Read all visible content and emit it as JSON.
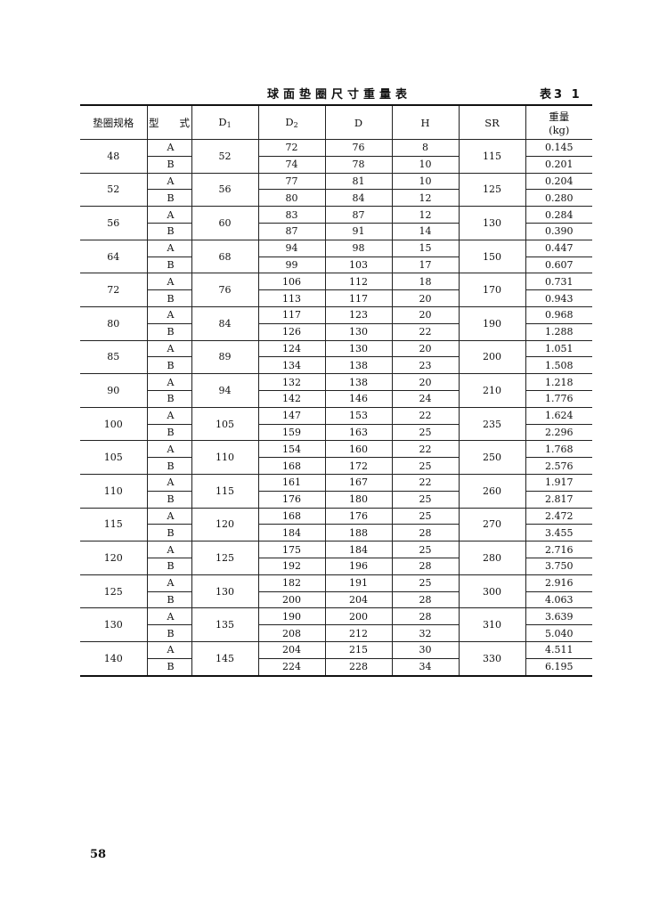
{
  "title": "球面垫圈尺寸重量表",
  "table_number": "表3 1",
  "page_number": "58",
  "headers": {
    "spec": "垫圈规格",
    "type": "型　　式",
    "d1": "D",
    "d1_sub": "1",
    "d2": "D",
    "d2_sub": "2",
    "d": "D",
    "h": "H",
    "sr": "SR",
    "weight": "重量",
    "weight_unit": "(kg)"
  },
  "groups": [
    {
      "spec": "48",
      "d1": "52",
      "sr": "115",
      "rows": [
        {
          "type": "A",
          "d2": "72",
          "d": "76",
          "h": "8",
          "w": "0.145"
        },
        {
          "type": "B",
          "d2": "74",
          "d": "78",
          "h": "10",
          "w": "0.201"
        }
      ]
    },
    {
      "spec": "52",
      "d1": "56",
      "sr": "125",
      "rows": [
        {
          "type": "A",
          "d2": "77",
          "d": "81",
          "h": "10",
          "w": "0.204"
        },
        {
          "type": "B",
          "d2": "80",
          "d": "84",
          "h": "12",
          "w": "0.280"
        }
      ]
    },
    {
      "spec": "56",
      "d1": "60",
      "sr": "130",
      "rows": [
        {
          "type": "A",
          "d2": "83",
          "d": "87",
          "h": "12",
          "w": "0.284"
        },
        {
          "type": "B",
          "d2": "87",
          "d": "91",
          "h": "14",
          "w": "0.390"
        }
      ]
    },
    {
      "spec": "64",
      "d1": "68",
      "sr": "150",
      "rows": [
        {
          "type": "A",
          "d2": "94",
          "d": "98",
          "h": "15",
          "w": "0.447"
        },
        {
          "type": "B",
          "d2": "99",
          "d": "103",
          "h": "17",
          "w": "0.607"
        }
      ]
    },
    {
      "spec": "72",
      "d1": "76",
      "sr": "170",
      "rows": [
        {
          "type": "A",
          "d2": "106",
          "d": "112",
          "h": "18",
          "w": "0.731"
        },
        {
          "type": "B",
          "d2": "113",
          "d": "117",
          "h": "20",
          "w": "0.943"
        }
      ]
    },
    {
      "spec": "80",
      "d1": "84",
      "sr": "190",
      "rows": [
        {
          "type": "A",
          "d2": "117",
          "d": "123",
          "h": "20",
          "w": "0.968"
        },
        {
          "type": "B",
          "d2": "126",
          "d": "130",
          "h": "22",
          "w": "1.288"
        }
      ]
    },
    {
      "spec": "85",
      "d1": "89",
      "sr": "200",
      "rows": [
        {
          "type": "A",
          "d2": "124",
          "d": "130",
          "h": "20",
          "w": "1.051"
        },
        {
          "type": "B",
          "d2": "134",
          "d": "138",
          "h": "23",
          "w": "1.508"
        }
      ]
    },
    {
      "spec": "90",
      "d1": "94",
      "sr": "210",
      "rows": [
        {
          "type": "A",
          "d2": "132",
          "d": "138",
          "h": "20",
          "w": "1.218"
        },
        {
          "type": "B",
          "d2": "142",
          "d": "146",
          "h": "24",
          "w": "1.776"
        }
      ]
    },
    {
      "spec": "100",
      "d1": "105",
      "sr": "235",
      "rows": [
        {
          "type": "A",
          "d2": "147",
          "d": "153",
          "h": "22",
          "w": "1.624"
        },
        {
          "type": "B",
          "d2": "159",
          "d": "163",
          "h": "25",
          "w": "2.296"
        }
      ]
    },
    {
      "spec": "105",
      "d1": "110",
      "sr": "250",
      "rows": [
        {
          "type": "A",
          "d2": "154",
          "d": "160",
          "h": "22",
          "w": "1.768"
        },
        {
          "type": "B",
          "d2": "168",
          "d": "172",
          "h": "25",
          "w": "2.576"
        }
      ]
    },
    {
      "spec": "110",
      "d1": "115",
      "sr": "260",
      "rows": [
        {
          "type": "A",
          "d2": "161",
          "d": "167",
          "h": "22",
          "w": "1.917"
        },
        {
          "type": "B",
          "d2": "176",
          "d": "180",
          "h": "25",
          "w": "2.817"
        }
      ]
    },
    {
      "spec": "115",
      "d1": "120",
      "sr": "270",
      "rows": [
        {
          "type": "A",
          "d2": "168",
          "d": "176",
          "h": "25",
          "w": "2.472"
        },
        {
          "type": "B",
          "d2": "184",
          "d": "188",
          "h": "28",
          "w": "3.455"
        }
      ]
    },
    {
      "spec": "120",
      "d1": "125",
      "sr": "280",
      "rows": [
        {
          "type": "A",
          "d2": "175",
          "d": "184",
          "h": "25",
          "w": "2.716"
        },
        {
          "type": "B",
          "d2": "192",
          "d": "196",
          "h": "28",
          "w": "3.750"
        }
      ]
    },
    {
      "spec": "125",
      "d1": "130",
      "sr": "300",
      "rows": [
        {
          "type": "A",
          "d2": "182",
          "d": "191",
          "h": "25",
          "w": "2.916"
        },
        {
          "type": "B",
          "d2": "200",
          "d": "204",
          "h": "28",
          "w": "4.063"
        }
      ]
    },
    {
      "spec": "130",
      "d1": "135",
      "sr": "310",
      "rows": [
        {
          "type": "A",
          "d2": "190",
          "d": "200",
          "h": "28",
          "w": "3.639"
        },
        {
          "type": "B",
          "d2": "208",
          "d": "212",
          "h": "32",
          "w": "5.040"
        }
      ]
    },
    {
      "spec": "140",
      "d1": "145",
      "sr": "330",
      "rows": [
        {
          "type": "A",
          "d2": "204",
          "d": "215",
          "h": "30",
          "w": "4.511"
        },
        {
          "type": "B",
          "d2": "224",
          "d": "228",
          "h": "34",
          "w": "6.195"
        }
      ]
    }
  ]
}
